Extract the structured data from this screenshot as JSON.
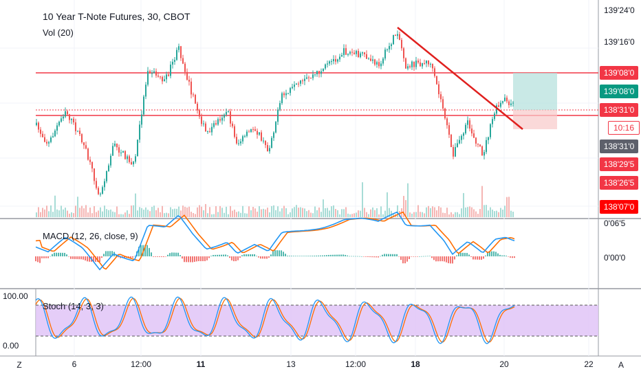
{
  "main_pane": {
    "symbol_title": "10 Year T-Note Futures, 30, CBOT",
    "volume_label": "Vol (20)",
    "price_axis": [
      "139'24'0",
      "139'16'0"
    ],
    "price_badges": [
      {
        "label": "139'08'0",
        "color": "#f23645"
      },
      {
        "label": "139'08'0",
        "color": "#089981"
      },
      {
        "label": "138'31'0",
        "color": "#f23645"
      },
      {
        "label": "10:16",
        "color": "#f23645"
      },
      {
        "label": "138'31'0",
        "color": "#5d606b"
      },
      {
        "label": "138'29'5",
        "color": "#f23645"
      },
      {
        "label": "138'26'5",
        "color": "#f23645"
      },
      {
        "label": "138'07'0",
        "color": "#ff0000"
      }
    ],
    "colors": {
      "up": "#26a69a",
      "down": "#ef5350",
      "trend": "#e0201e",
      "level": "#f23645"
    }
  },
  "macd_pane": {
    "label": "MACD (12, 26, close, 9)",
    "axis": [
      "0'06'5",
      "0'00'0"
    ],
    "colors": {
      "macd": "#2196f3",
      "signal": "#ff6d00"
    }
  },
  "stoch_pane": {
    "label": "Stoch (14, 3, 3)",
    "axis": [
      "100.00",
      "0.00"
    ],
    "band_color": "#e1c4f7"
  },
  "time_axis": [
    "6",
    "12:00",
    "11",
    "13",
    "12:00",
    "18",
    "20",
    "22"
  ],
  "corner_buttons": {
    "zoom": "Z",
    "auto": "A"
  }
}
